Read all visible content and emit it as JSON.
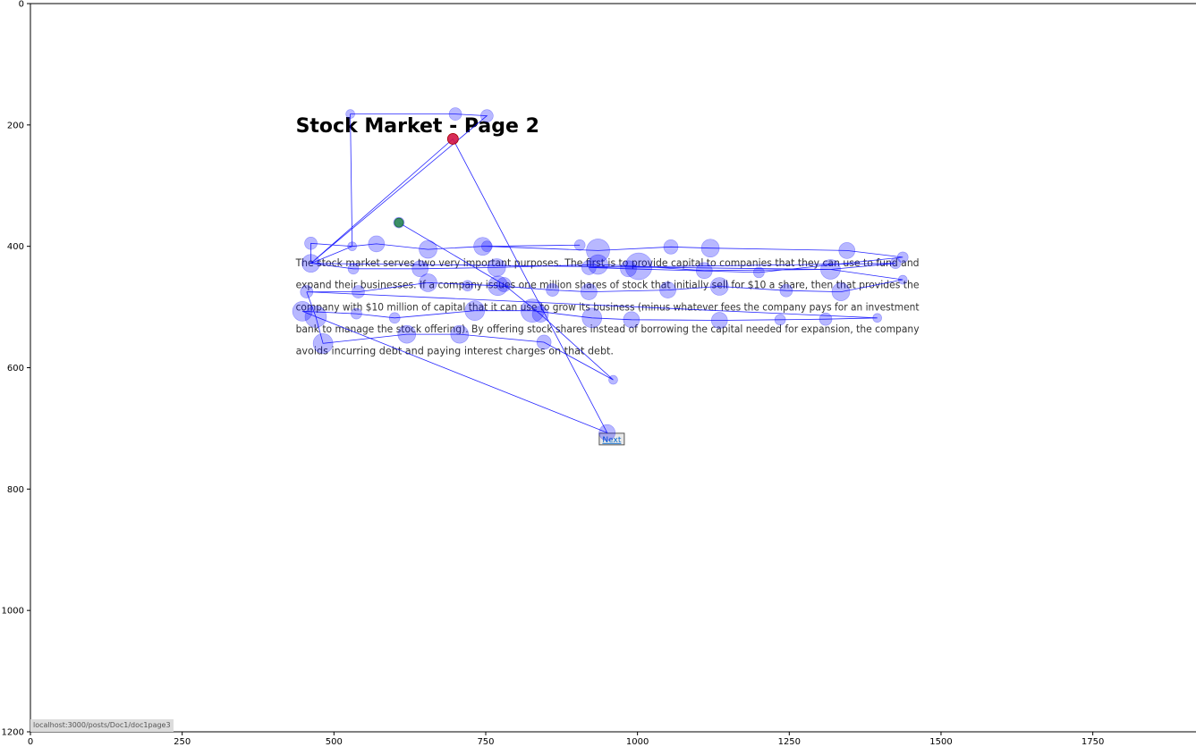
{
  "page": {
    "title": "Stock Market - Page 2",
    "paragraph_lines": [
      "The stock market serves two very important purposes. The first is to provide capital to companies that they can use to fund and",
      "expand their businesses. If a company issues one million shares of stock that initially sell for $10 a share, then that provides the",
      "company with $10 million of capital that it can use to grow its business (minus whatever fees the company pays for an investment",
      "bank to manage the stock offering). By offering stock shares instead of borrowing the capital needed for expansion, the company",
      "avoids incurring debt and paying interest charges on that debt."
    ],
    "next_button_label": "Next",
    "status_url": "localhost:3000/posts/Doc1/doc1page3"
  },
  "colors": {
    "fixation": "#0000ff",
    "scanpath": "#0000ff",
    "start_marker": "#2e8b57",
    "end_marker": "#dc143c"
  },
  "chart_data": {
    "type": "scatter",
    "title": "",
    "xlabel": "",
    "ylabel": "",
    "xlim": [
      0,
      1920
    ],
    "ylim": [
      1200,
      0
    ],
    "x_ticks": [
      0,
      250,
      500,
      750,
      1000,
      1250,
      1500,
      1750
    ],
    "y_ticks": [
      0,
      200,
      400,
      600,
      800,
      1000,
      1200
    ],
    "grid": false,
    "start": {
      "x": 607,
      "y": 361
    },
    "end": {
      "x": 696,
      "y": 223
    },
    "fixations": [
      {
        "x": 607,
        "y": 361,
        "d": 12
      },
      {
        "x": 780,
        "y": 463,
        "d": 16
      },
      {
        "x": 840,
        "y": 512,
        "d": 18
      },
      {
        "x": 960,
        "y": 620,
        "d": 10
      },
      {
        "x": 950,
        "y": 707,
        "d": 18
      },
      {
        "x": 846,
        "y": 558,
        "d": 16
      },
      {
        "x": 707,
        "y": 545,
        "d": 20
      },
      {
        "x": 620,
        "y": 545,
        "d": 20
      },
      {
        "x": 482,
        "y": 560,
        "d": 22
      },
      {
        "x": 470,
        "y": 516,
        "d": 24
      },
      {
        "x": 448,
        "y": 507,
        "d": 22
      },
      {
        "x": 537,
        "y": 511,
        "d": 12
      },
      {
        "x": 600,
        "y": 518,
        "d": 12
      },
      {
        "x": 732,
        "y": 506,
        "d": 22
      },
      {
        "x": 827,
        "y": 506,
        "d": 26
      },
      {
        "x": 925,
        "y": 518,
        "d": 22
      },
      {
        "x": 990,
        "y": 521,
        "d": 18
      },
      {
        "x": 1135,
        "y": 522,
        "d": 18
      },
      {
        "x": 1235,
        "y": 521,
        "d": 12
      },
      {
        "x": 1310,
        "y": 520,
        "d": 14
      },
      {
        "x": 1395,
        "y": 518,
        "d": 10
      },
      {
        "x": 455,
        "y": 475,
        "d": 14
      },
      {
        "x": 540,
        "y": 475,
        "d": 14
      },
      {
        "x": 655,
        "y": 460,
        "d": 20
      },
      {
        "x": 720,
        "y": 465,
        "d": 12
      },
      {
        "x": 770,
        "y": 465,
        "d": 22
      },
      {
        "x": 860,
        "y": 472,
        "d": 14
      },
      {
        "x": 920,
        "y": 475,
        "d": 18
      },
      {
        "x": 1050,
        "y": 472,
        "d": 18
      },
      {
        "x": 1135,
        "y": 466,
        "d": 20
      },
      {
        "x": 1245,
        "y": 473,
        "d": 14
      },
      {
        "x": 1335,
        "y": 475,
        "d": 20
      },
      {
        "x": 1437,
        "y": 455,
        "d": 10
      },
      {
        "x": 462,
        "y": 428,
        "d": 20
      },
      {
        "x": 532,
        "y": 437,
        "d": 12
      },
      {
        "x": 642,
        "y": 437,
        "d": 18
      },
      {
        "x": 768,
        "y": 435,
        "d": 20
      },
      {
        "x": 920,
        "y": 435,
        "d": 16
      },
      {
        "x": 935,
        "y": 430,
        "d": 22
      },
      {
        "x": 985,
        "y": 437,
        "d": 18
      },
      {
        "x": 1002,
        "y": 433,
        "d": 30
      },
      {
        "x": 1110,
        "y": 440,
        "d": 18
      },
      {
        "x": 1200,
        "y": 443,
        "d": 12
      },
      {
        "x": 1318,
        "y": 438,
        "d": 22
      },
      {
        "x": 1425,
        "y": 428,
        "d": 12
      },
      {
        "x": 462,
        "y": 395,
        "d": 14
      },
      {
        "x": 530,
        "y": 400,
        "d": 10
      },
      {
        "x": 570,
        "y": 396,
        "d": 18
      },
      {
        "x": 655,
        "y": 405,
        "d": 20
      },
      {
        "x": 745,
        "y": 400,
        "d": 20
      },
      {
        "x": 752,
        "y": 400,
        "d": 12
      },
      {
        "x": 905,
        "y": 398,
        "d": 12
      },
      {
        "x": 935,
        "y": 407,
        "d": 26
      },
      {
        "x": 1055,
        "y": 401,
        "d": 16
      },
      {
        "x": 1120,
        "y": 403,
        "d": 20
      },
      {
        "x": 1345,
        "y": 407,
        "d": 18
      },
      {
        "x": 1437,
        "y": 418,
        "d": 12
      },
      {
        "x": 527,
        "y": 182,
        "d": 10
      },
      {
        "x": 700,
        "y": 182,
        "d": 14
      },
      {
        "x": 752,
        "y": 185,
        "d": 14
      },
      {
        "x": 696,
        "y": 223,
        "d": 12
      }
    ],
    "scanpath": [
      {
        "x": 607,
        "y": 361
      },
      {
        "x": 780,
        "y": 463
      },
      {
        "x": 840,
        "y": 512
      },
      {
        "x": 960,
        "y": 620
      },
      {
        "x": 846,
        "y": 558
      },
      {
        "x": 707,
        "y": 545
      },
      {
        "x": 620,
        "y": 545
      },
      {
        "x": 482,
        "y": 560
      },
      {
        "x": 470,
        "y": 516
      },
      {
        "x": 448,
        "y": 507
      },
      {
        "x": 537,
        "y": 511
      },
      {
        "x": 600,
        "y": 518
      },
      {
        "x": 732,
        "y": 506
      },
      {
        "x": 827,
        "y": 506
      },
      {
        "x": 925,
        "y": 518
      },
      {
        "x": 990,
        "y": 521
      },
      {
        "x": 1135,
        "y": 522
      },
      {
        "x": 1235,
        "y": 521
      },
      {
        "x": 1310,
        "y": 520
      },
      {
        "x": 1395,
        "y": 518
      },
      {
        "x": 455,
        "y": 475
      },
      {
        "x": 540,
        "y": 475
      },
      {
        "x": 655,
        "y": 460
      },
      {
        "x": 770,
        "y": 465
      },
      {
        "x": 860,
        "y": 472
      },
      {
        "x": 920,
        "y": 475
      },
      {
        "x": 1050,
        "y": 472
      },
      {
        "x": 1135,
        "y": 466
      },
      {
        "x": 1245,
        "y": 473
      },
      {
        "x": 1335,
        "y": 475
      },
      {
        "x": 1437,
        "y": 455
      },
      {
        "x": 1318,
        "y": 438
      },
      {
        "x": 1110,
        "y": 440
      },
      {
        "x": 1002,
        "y": 433
      },
      {
        "x": 935,
        "y": 430
      },
      {
        "x": 768,
        "y": 435
      },
      {
        "x": 642,
        "y": 437
      },
      {
        "x": 532,
        "y": 437
      },
      {
        "x": 462,
        "y": 428
      },
      {
        "x": 462,
        "y": 395
      },
      {
        "x": 530,
        "y": 400
      },
      {
        "x": 570,
        "y": 396
      },
      {
        "x": 655,
        "y": 405
      },
      {
        "x": 745,
        "y": 400
      },
      {
        "x": 905,
        "y": 398
      },
      {
        "x": 752,
        "y": 400
      },
      {
        "x": 935,
        "y": 407
      },
      {
        "x": 1055,
        "y": 401
      },
      {
        "x": 1120,
        "y": 403
      },
      {
        "x": 1345,
        "y": 407
      },
      {
        "x": 1437,
        "y": 418
      },
      {
        "x": 1200,
        "y": 443
      },
      {
        "x": 985,
        "y": 437
      },
      {
        "x": 920,
        "y": 435
      },
      {
        "x": 1425,
        "y": 428
      },
      {
        "x": 1318,
        "y": 438
      },
      {
        "x": 462,
        "y": 428
      },
      {
        "x": 752,
        "y": 185
      },
      {
        "x": 700,
        "y": 182
      },
      {
        "x": 527,
        "y": 182
      },
      {
        "x": 530,
        "y": 400
      },
      {
        "x": 462,
        "y": 428
      },
      {
        "x": 696,
        "y": 223
      },
      {
        "x": 950,
        "y": 707
      },
      {
        "x": 470,
        "y": 516
      },
      {
        "x": 455,
        "y": 475
      }
    ]
  }
}
